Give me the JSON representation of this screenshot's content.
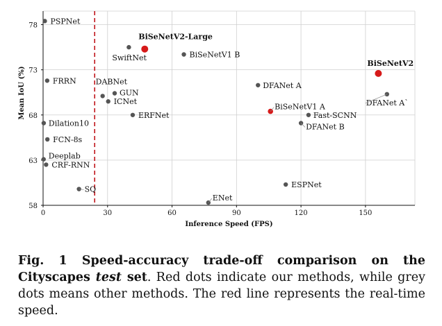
{
  "chart_data": {
    "type": "scatter",
    "xlabel": "Inference Speed (FPS)",
    "ylabel": "Mean IoU (%)",
    "xlim": [
      0,
      173
    ],
    "ylim": [
      58,
      79.5
    ],
    "xticks": [
      0,
      30,
      60,
      90,
      120,
      150
    ],
    "yticks": [
      58,
      63,
      68,
      73,
      78
    ],
    "grid": true,
    "realtime_line_x": 24,
    "colors": {
      "ours": "#d61a1a",
      "others": "#555555",
      "realtime_line": "#c0141a"
    },
    "points": [
      {
        "name": "PSPNet",
        "x": 0.8,
        "y": 78.4,
        "group": "others"
      },
      {
        "name": "FRRN",
        "x": 1.9,
        "y": 71.8,
        "group": "others"
      },
      {
        "name": "Dilation10",
        "x": 0.3,
        "y": 67.1,
        "group": "others"
      },
      {
        "name": "FCN-8s",
        "x": 2.0,
        "y": 65.3,
        "group": "others"
      },
      {
        "name": "Deeplab",
        "x": 0.25,
        "y": 63.1,
        "group": "others"
      },
      {
        "name": "CRF-RNN",
        "x": 1.4,
        "y": 62.5,
        "group": "others"
      },
      {
        "name": "SQ",
        "x": 16.7,
        "y": 59.8,
        "group": "others"
      },
      {
        "name": "DABNet",
        "x": 27.7,
        "y": 70.1,
        "group": "others"
      },
      {
        "name": "GUN",
        "x": 33.3,
        "y": 70.4,
        "group": "others"
      },
      {
        "name": "ICNet",
        "x": 30.3,
        "y": 69.5,
        "group": "others"
      },
      {
        "name": "ERFNet",
        "x": 41.7,
        "y": 68.0,
        "group": "others"
      },
      {
        "name": "SwiftNet",
        "x": 39.9,
        "y": 75.5,
        "group": "others"
      },
      {
        "name": "BiSeNetV2-Large",
        "x": 47.3,
        "y": 75.3,
        "group": "ours"
      },
      {
        "name": "BiSeNetV1 B",
        "x": 65.5,
        "y": 74.7,
        "group": "others"
      },
      {
        "name": "ENet",
        "x": 76.9,
        "y": 58.3,
        "group": "others"
      },
      {
        "name": "DFANet A",
        "x": 100.0,
        "y": 71.3,
        "group": "others"
      },
      {
        "name": "BiSeNetV1 A",
        "x": 105.8,
        "y": 68.4,
        "group": "ours"
      },
      {
        "name": "ESPNet",
        "x": 112.9,
        "y": 60.3,
        "group": "others"
      },
      {
        "name": "Fast-SCNN",
        "x": 123.5,
        "y": 68.0,
        "group": "others"
      },
      {
        "name": "DFANet B",
        "x": 120.0,
        "y": 67.1,
        "group": "others"
      },
      {
        "name": "BiSeNetV2",
        "x": 156.0,
        "y": 72.6,
        "group": "ours"
      },
      {
        "name": "DFANet A`",
        "x": 160.0,
        "y": 70.3,
        "group": "others"
      }
    ]
  },
  "caption": {
    "bold_part_1": "Fig. 1 Speed-accuracy trade-off comparison on the Cityscapes ",
    "bold_italic_part": "test",
    "bold_part_2": " set",
    "rest": ". Red dots indicate our methods, while grey dots means other methods. The red line represents the real-time speed."
  }
}
